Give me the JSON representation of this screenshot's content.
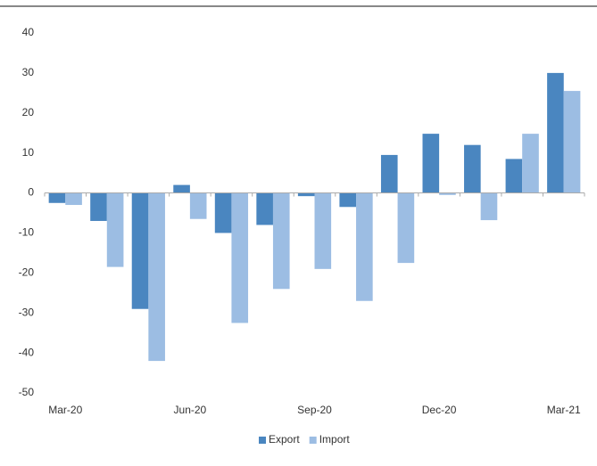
{
  "chart_data": {
    "type": "bar",
    "categories": [
      "Mar-20",
      null,
      null,
      "Jun-20",
      null,
      null,
      "Sep-20",
      null,
      null,
      "Dec-20",
      null,
      null,
      "Mar-21"
    ],
    "series": [
      {
        "name": "Export",
        "color": "#4a86c0",
        "values": [
          -2.5,
          -7,
          -29,
          2,
          -10,
          -8,
          -0.8,
          -3.5,
          9.5,
          14.8,
          12,
          8.5,
          30
        ]
      },
      {
        "name": "Import",
        "color": "#9cbde3",
        "values": [
          -3,
          -18.5,
          -42,
          -6.5,
          -32.5,
          -24,
          -19,
          -27,
          -17.5,
          -0.5,
          -6.8,
          14.8,
          25.5
        ]
      }
    ],
    "ylim": [
      -50,
      40
    ],
    "yticks": [
      -50,
      -40,
      -30,
      -20,
      -10,
      0,
      10,
      20,
      30,
      40
    ],
    "grid": false,
    "legend": "bottom"
  }
}
